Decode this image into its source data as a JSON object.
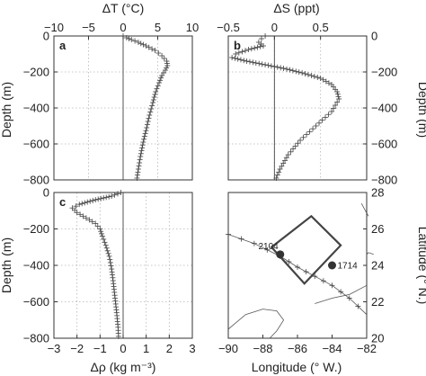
{
  "chart_data": [
    {
      "id": "a",
      "type": "scatter",
      "panel_label": "a",
      "xlabel": "ΔT (°C)",
      "ylabel": "Depth (m)",
      "xlim": [
        -10,
        10
      ],
      "ylim": [
        -800,
        0
      ],
      "xticks": [
        -10,
        -5,
        0,
        5,
        10
      ],
      "yticks": [
        0,
        -200,
        -400,
        -600,
        -800
      ],
      "grid": true,
      "marker": "+",
      "profile": [
        [
          0,
          0
        ],
        [
          0.5,
          -10
        ],
        [
          1.2,
          -20
        ],
        [
          2.2,
          -35
        ],
        [
          3.3,
          -55
        ],
        [
          4.6,
          -80
        ],
        [
          5.6,
          -110
        ],
        [
          6.3,
          -140
        ],
        [
          6.4,
          -165
        ],
        [
          6.1,
          -190
        ],
        [
          5.6,
          -220
        ],
        [
          5.2,
          -260
        ],
        [
          4.7,
          -310
        ],
        [
          4.3,
          -370
        ],
        [
          3.8,
          -440
        ],
        [
          3.4,
          -510
        ],
        [
          2.9,
          -590
        ],
        [
          2.5,
          -670
        ],
        [
          2.2,
          -740
        ],
        [
          2.0,
          -790
        ]
      ]
    },
    {
      "id": "b",
      "type": "scatter",
      "panel_label": "b",
      "xlabel": "ΔS (ppt)",
      "ylabel": "Depth (m)",
      "xlim": [
        -0.5,
        1.0
      ],
      "ylim": [
        -800,
        0
      ],
      "xticks": [
        -0.5,
        0,
        0.5
      ],
      "yticks": [
        0,
        -200,
        -400,
        -600,
        -800
      ],
      "grid": true,
      "marker": "+",
      "profile": [
        [
          -0.1,
          0
        ],
        [
          -0.14,
          -15
        ],
        [
          -0.17,
          -35
        ],
        [
          -0.12,
          -55
        ],
        [
          -0.28,
          -75
        ],
        [
          -0.42,
          -100
        ],
        [
          -0.46,
          -120
        ],
        [
          -0.3,
          -140
        ],
        [
          -0.1,
          -160
        ],
        [
          0.1,
          -180
        ],
        [
          0.3,
          -205
        ],
        [
          0.5,
          -235
        ],
        [
          0.62,
          -270
        ],
        [
          0.68,
          -310
        ],
        [
          0.7,
          -350
        ],
        [
          0.62,
          -420
        ],
        [
          0.45,
          -500
        ],
        [
          0.28,
          -580
        ],
        [
          0.15,
          -660
        ],
        [
          0.06,
          -740
        ],
        [
          0.02,
          -790
        ]
      ]
    },
    {
      "id": "c",
      "type": "scatter",
      "panel_label": "c",
      "xlabel": "Δρ (kg m⁻³)",
      "ylabel": "Depth (m)",
      "xlim": [
        -3,
        3
      ],
      "ylim": [
        -800,
        0
      ],
      "xticks": [
        -3,
        -2,
        -1,
        0,
        1,
        2,
        3
      ],
      "yticks": [
        0,
        -200,
        -400,
        -600,
        -800
      ],
      "grid": true,
      "marker": "+",
      "profile": [
        [
          -0.1,
          0
        ],
        [
          -0.5,
          -20
        ],
        [
          -1.2,
          -40
        ],
        [
          -1.9,
          -65
        ],
        [
          -2.2,
          -85
        ],
        [
          -2.0,
          -110
        ],
        [
          -1.6,
          -140
        ],
        [
          -1.2,
          -170
        ],
        [
          -1.0,
          -200
        ],
        [
          -0.9,
          -240
        ],
        [
          -0.75,
          -290
        ],
        [
          -0.6,
          -350
        ],
        [
          -0.5,
          -420
        ],
        [
          -0.42,
          -500
        ],
        [
          -0.35,
          -580
        ],
        [
          -0.28,
          -660
        ],
        [
          -0.22,
          -740
        ],
        [
          -0.2,
          -790
        ]
      ]
    },
    {
      "id": "map",
      "type": "scatter",
      "xlabel": "Longitude (° W.)",
      "ylabel": "Latitude (° N.)",
      "xlim": [
        -90,
        -82
      ],
      "ylim": [
        20,
        28
      ],
      "xticks": [
        -90,
        -88,
        -86,
        -84,
        -82
      ],
      "yticks": [
        20,
        22,
        24,
        26,
        28
      ],
      "grid": false,
      "stations": [
        {
          "label": "2104",
          "lon": -87.0,
          "lat": 24.6
        },
        {
          "label": "1714",
          "lon": -84.0,
          "lat": 24.0
        }
      ],
      "box_corners": [
        [
          -87.5,
          25.0
        ],
        [
          -85.2,
          26.7
        ],
        [
          -83.5,
          25.1
        ],
        [
          -85.6,
          23.0
        ]
      ],
      "ship_track": [
        [
          -90,
          25.7
        ],
        [
          -88.5,
          25.2
        ],
        [
          -87.0,
          24.5
        ],
        [
          -86.0,
          23.9
        ],
        [
          -85.0,
          23.4
        ],
        [
          -84.0,
          22.9
        ],
        [
          -83.0,
          22.2
        ],
        [
          -82.0,
          21.3
        ]
      ],
      "coastlines": [
        [
          [
            -90.0,
            20.5
          ],
          [
            -89.0,
            21.3
          ],
          [
            -88.0,
            21.6
          ],
          [
            -87.2,
            21.5
          ],
          [
            -86.8,
            21.0
          ],
          [
            -87.2,
            20.4
          ],
          [
            -87.6,
            20.0
          ]
        ],
        [
          [
            -85.0,
            21.9
          ],
          [
            -84.0,
            22.2
          ],
          [
            -83.0,
            22.4
          ],
          [
            -82.0,
            22.9
          ]
        ],
        [
          [
            -82.3,
            27.4
          ],
          [
            -81.9,
            26.7
          ]
        ],
        [
          [
            -81.6,
            24.6
          ],
          [
            -81.9,
            24.7
          ],
          [
            -82.0,
            24.6
          ]
        ]
      ]
    }
  ]
}
